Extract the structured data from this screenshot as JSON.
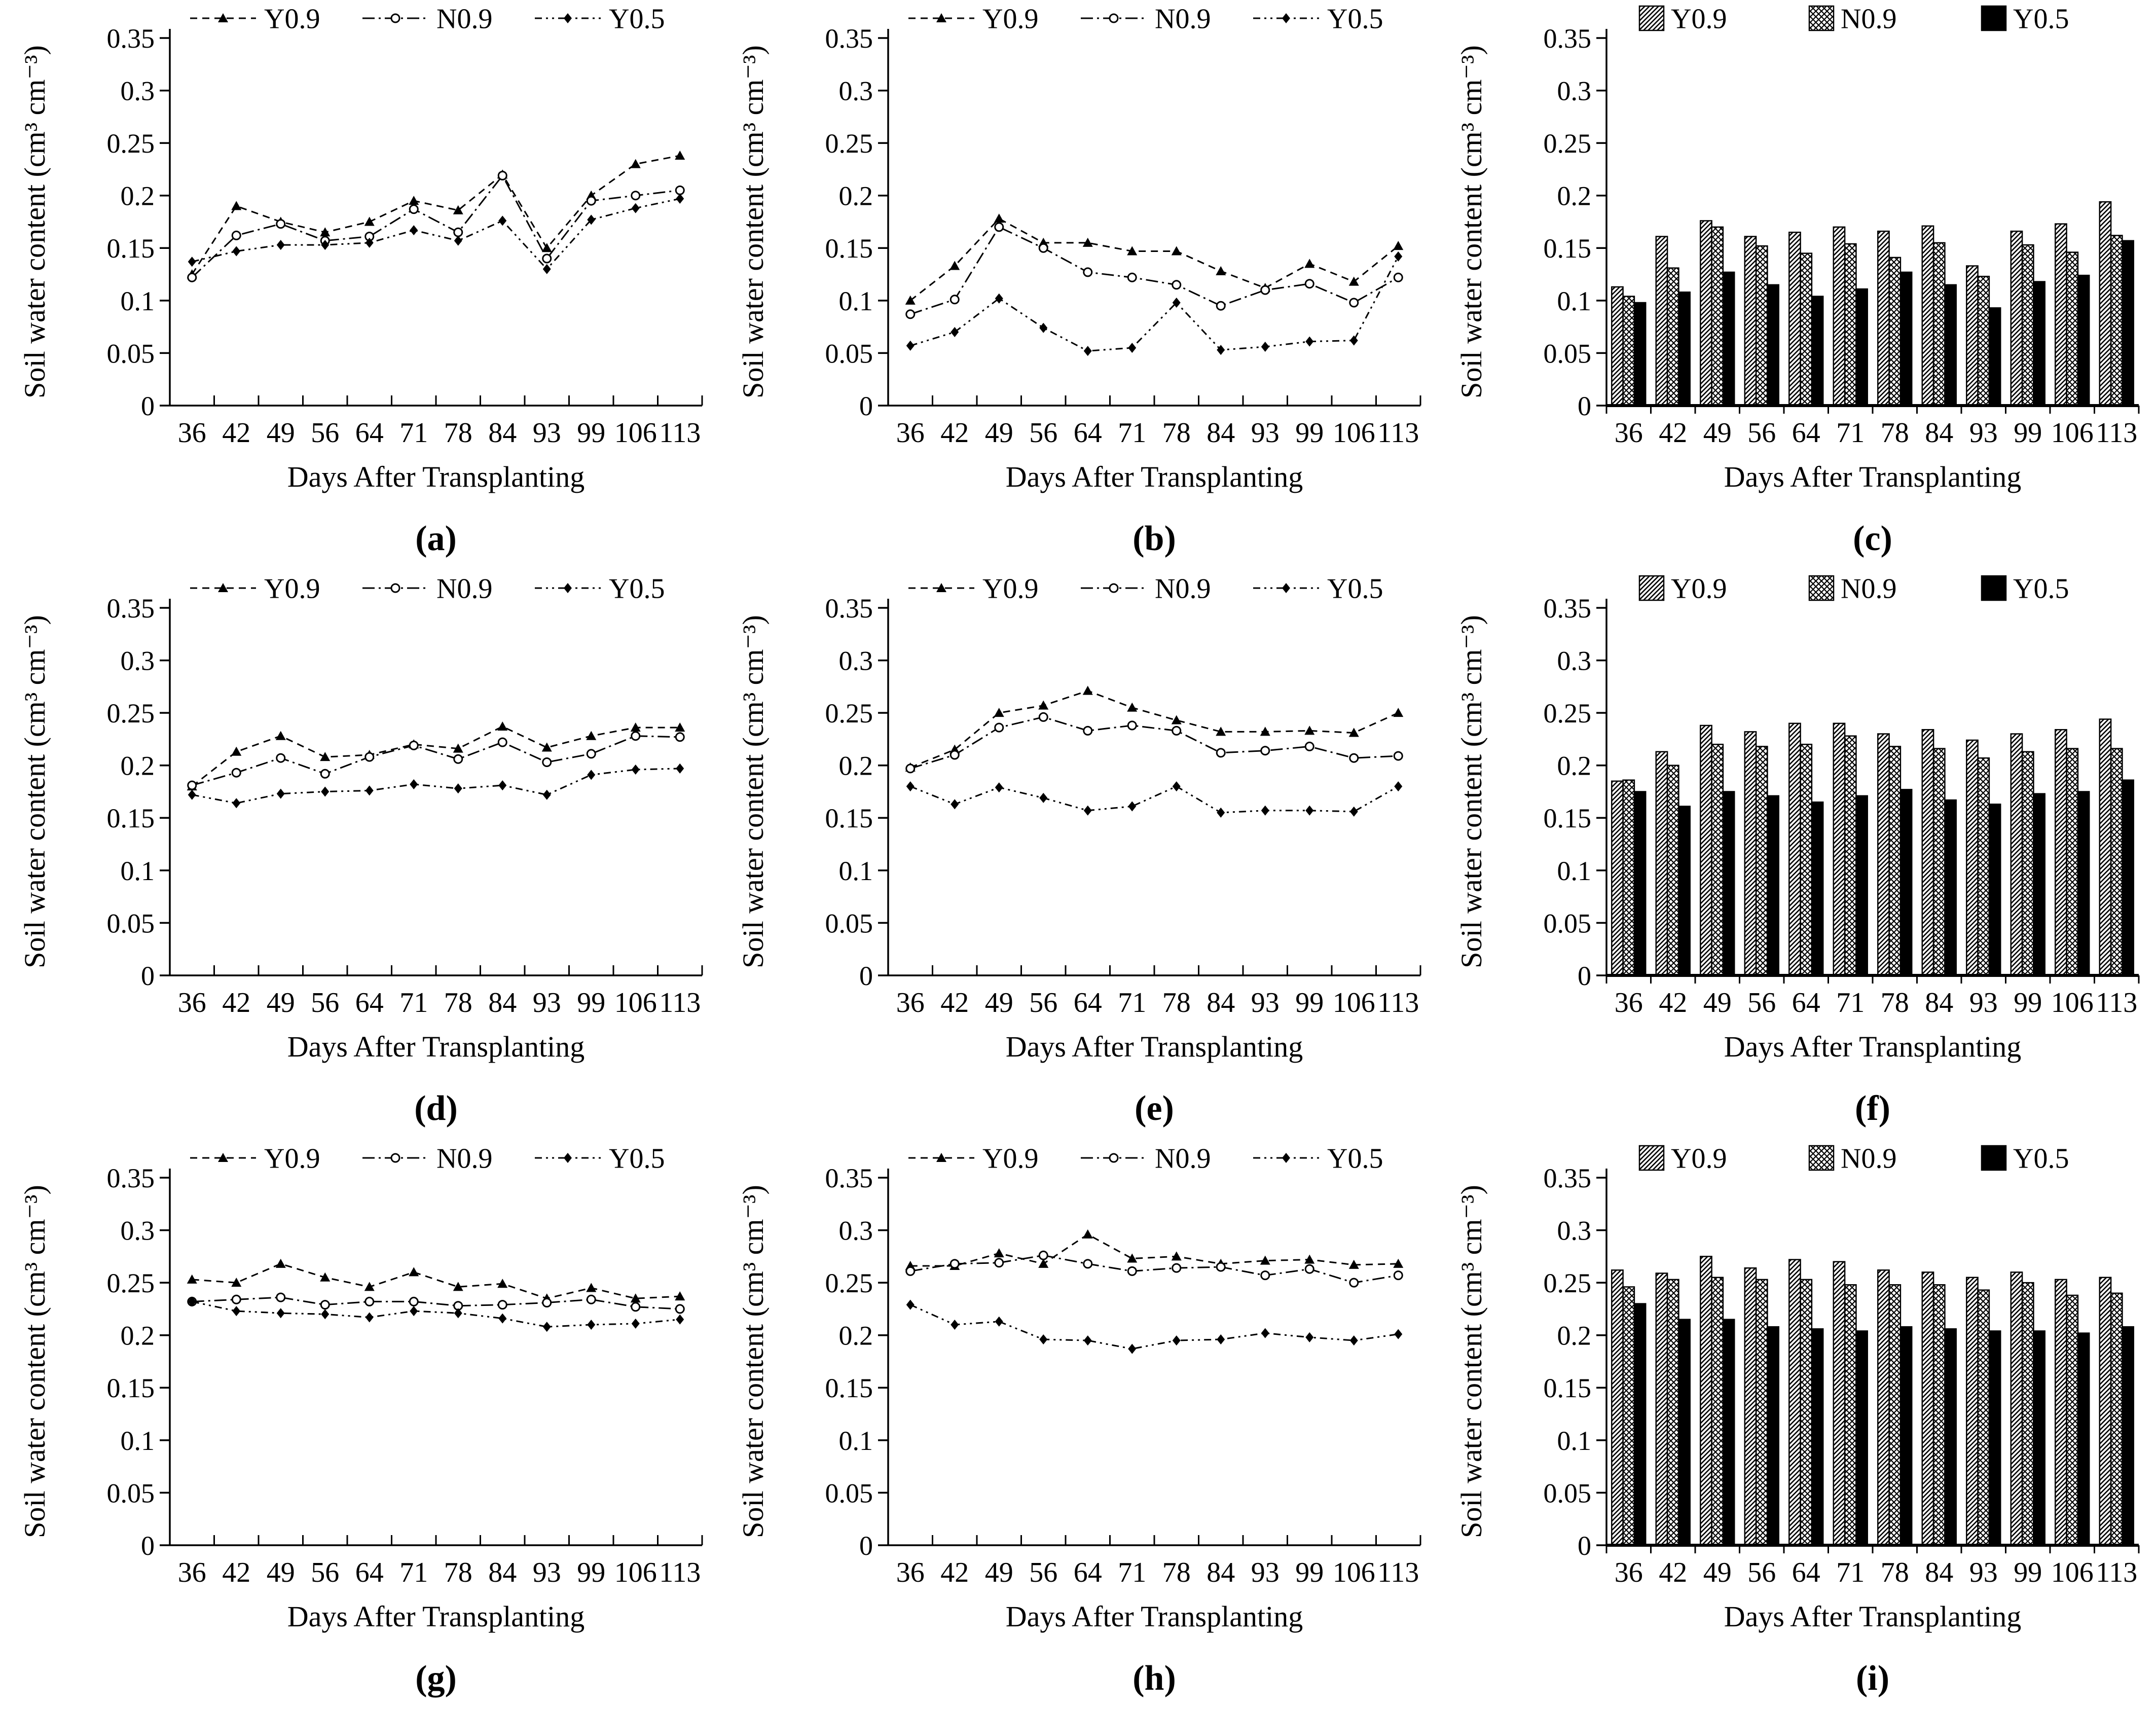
{
  "page": {
    "background": "#ffffff",
    "ink": "#000000"
  },
  "legend": {
    "position": "top-center",
    "items": [
      {
        "name": "Y0.9",
        "line_marker": "triangle-filled",
        "line_style": "dashed",
        "bar_fill": "diagonal-hatch"
      },
      {
        "name": "N0.9",
        "line_marker": "circle-open",
        "line_style": "dash-dot",
        "bar_fill": "diamond-crosshatch"
      },
      {
        "name": "Y0.5",
        "line_marker": "diamond-filled",
        "line_style": "dash-dot-dot",
        "bar_fill": "solid-black"
      }
    ]
  },
  "chart_data": [
    {
      "id": "a",
      "label": "(a)",
      "type": "line",
      "xlabel": "Days After Transplanting",
      "ylabel": "Soil water content (cm³ cm⁻³)",
      "ylim": [
        0,
        0.35
      ],
      "yticks": [
        0,
        0.05,
        0.1,
        0.15,
        0.2,
        0.25,
        0.3,
        0.35
      ],
      "grid": false,
      "categories": [
        36,
        42,
        49,
        56,
        64,
        71,
        78,
        84,
        93,
        99,
        106,
        113
      ],
      "series": [
        {
          "name": "Y0.9",
          "values": [
            0.125,
            0.19,
            0.175,
            0.165,
            0.175,
            0.195,
            0.186,
            0.22,
            0.15,
            0.2,
            0.23,
            0.238
          ]
        },
        {
          "name": "N0.9",
          "values": [
            0.122,
            0.162,
            0.173,
            0.157,
            0.161,
            0.187,
            0.165,
            0.219,
            0.14,
            0.195,
            0.2,
            0.205
          ]
        },
        {
          "name": "Y0.5",
          "values": [
            0.137,
            0.147,
            0.153,
            0.153,
            0.155,
            0.167,
            0.157,
            0.176,
            0.13,
            0.177,
            0.188,
            0.197
          ]
        }
      ]
    },
    {
      "id": "b",
      "label": "(b)",
      "type": "line",
      "xlabel": "Days After Transplanting",
      "ylabel": "Soil water content (cm³ cm⁻³)",
      "ylim": [
        0,
        0.35
      ],
      "yticks": [
        0,
        0.05,
        0.1,
        0.15,
        0.2,
        0.25,
        0.3,
        0.35
      ],
      "grid": false,
      "categories": [
        36,
        42,
        49,
        56,
        64,
        71,
        78,
        84,
        93,
        99,
        106,
        113
      ],
      "series": [
        {
          "name": "Y0.9",
          "values": [
            0.1,
            0.133,
            0.178,
            0.155,
            0.155,
            0.147,
            0.147,
            0.128,
            0.112,
            0.135,
            0.118,
            0.152
          ]
        },
        {
          "name": "N0.9",
          "values": [
            0.087,
            0.101,
            0.17,
            0.15,
            0.127,
            0.122,
            0.115,
            0.095,
            0.11,
            0.116,
            0.098,
            0.122
          ]
        },
        {
          "name": "Y0.5",
          "values": [
            0.057,
            0.07,
            0.102,
            0.074,
            0.052,
            0.055,
            0.098,
            0.053,
            0.056,
            0.061,
            0.062,
            0.142
          ]
        }
      ]
    },
    {
      "id": "c",
      "label": "(c)",
      "type": "bar",
      "xlabel": "Days After Transplanting",
      "ylabel": "Soil water content (cm³ cm⁻³)",
      "ylim": [
        0,
        0.35
      ],
      "yticks": [
        0,
        0.05,
        0.1,
        0.15,
        0.2,
        0.25,
        0.3,
        0.35
      ],
      "grid": false,
      "categories": [
        36,
        42,
        49,
        56,
        64,
        71,
        78,
        84,
        93,
        99,
        106,
        113
      ],
      "series": [
        {
          "name": "Y0.9",
          "values": [
            0.113,
            0.161,
            0.176,
            0.161,
            0.165,
            0.17,
            0.166,
            0.171,
            0.133,
            0.166,
            0.173,
            0.194
          ]
        },
        {
          "name": "N0.9",
          "values": [
            0.104,
            0.131,
            0.17,
            0.152,
            0.145,
            0.154,
            0.141,
            0.155,
            0.123,
            0.153,
            0.146,
            0.162
          ]
        },
        {
          "name": "Y0.5",
          "values": [
            0.098,
            0.108,
            0.127,
            0.115,
            0.104,
            0.111,
            0.127,
            0.115,
            0.093,
            0.118,
            0.124,
            0.157
          ]
        }
      ]
    },
    {
      "id": "d",
      "label": "(d)",
      "type": "line",
      "xlabel": "Days After Transplanting",
      "ylabel": "Soil water content (cm³ cm⁻³)",
      "ylim": [
        0,
        0.35
      ],
      "yticks": [
        0,
        0.05,
        0.1,
        0.15,
        0.2,
        0.25,
        0.3,
        0.35
      ],
      "grid": false,
      "categories": [
        36,
        42,
        49,
        56,
        64,
        71,
        78,
        84,
        93,
        99,
        106,
        113
      ],
      "series": [
        {
          "name": "Y0.9",
          "values": [
            0.18,
            0.213,
            0.228,
            0.208,
            0.21,
            0.22,
            0.216,
            0.237,
            0.217,
            0.228,
            0.236,
            0.236
          ]
        },
        {
          "name": "N0.9",
          "values": [
            0.181,
            0.193,
            0.207,
            0.192,
            0.208,
            0.219,
            0.206,
            0.222,
            0.203,
            0.211,
            0.228,
            0.227
          ]
        },
        {
          "name": "Y0.5",
          "values": [
            0.172,
            0.164,
            0.173,
            0.175,
            0.176,
            0.182,
            0.178,
            0.181,
            0.172,
            0.191,
            0.196,
            0.197
          ]
        }
      ]
    },
    {
      "id": "e",
      "label": "(e)",
      "type": "line",
      "xlabel": "Days After Transplanting",
      "ylabel": "Soil water content (cm³ cm⁻³)",
      "ylim": [
        0,
        0.35
      ],
      "yticks": [
        0,
        0.05,
        0.1,
        0.15,
        0.2,
        0.25,
        0.3,
        0.35
      ],
      "grid": false,
      "categories": [
        36,
        42,
        49,
        56,
        64,
        71,
        78,
        84,
        93,
        99,
        106,
        113
      ],
      "series": [
        {
          "name": "Y0.9",
          "values": [
            0.198,
            0.215,
            0.25,
            0.257,
            0.271,
            0.255,
            0.243,
            0.232,
            0.232,
            0.233,
            0.231,
            0.25
          ]
        },
        {
          "name": "N0.9",
          "values": [
            0.197,
            0.21,
            0.236,
            0.246,
            0.233,
            0.238,
            0.233,
            0.212,
            0.214,
            0.218,
            0.207,
            0.209
          ]
        },
        {
          "name": "Y0.5",
          "values": [
            0.18,
            0.163,
            0.179,
            0.169,
            0.157,
            0.161,
            0.18,
            0.155,
            0.157,
            0.157,
            0.156,
            0.18
          ]
        }
      ]
    },
    {
      "id": "f",
      "label": "(f)",
      "type": "bar",
      "xlabel": "Days After Transplanting",
      "ylabel": "Soil water content (cm³ cm⁻³)",
      "ylim": [
        0,
        0.35
      ],
      "yticks": [
        0,
        0.05,
        0.1,
        0.15,
        0.2,
        0.25,
        0.3,
        0.35
      ],
      "grid": false,
      "categories": [
        36,
        42,
        49,
        56,
        64,
        71,
        78,
        84,
        93,
        99,
        106,
        113
      ],
      "series": [
        {
          "name": "Y0.9",
          "values": [
            0.185,
            0.213,
            0.238,
            0.232,
            0.24,
            0.24,
            0.23,
            0.234,
            0.224,
            0.23,
            0.234,
            0.244
          ]
        },
        {
          "name": "N0.9",
          "values": [
            0.186,
            0.2,
            0.22,
            0.218,
            0.22,
            0.228,
            0.218,
            0.216,
            0.207,
            0.213,
            0.216,
            0.216
          ]
        },
        {
          "name": "Y0.5",
          "values": [
            0.175,
            0.161,
            0.175,
            0.171,
            0.165,
            0.171,
            0.177,
            0.167,
            0.163,
            0.173,
            0.175,
            0.186
          ]
        }
      ]
    },
    {
      "id": "g",
      "label": "(g)",
      "type": "line",
      "xlabel": "Days After Transplanting",
      "ylabel": "Soil water content (cm³ cm⁻³)",
      "ylim": [
        0,
        0.35
      ],
      "yticks": [
        0,
        0.05,
        0.1,
        0.15,
        0.2,
        0.25,
        0.3,
        0.35
      ],
      "grid": false,
      "categories": [
        36,
        42,
        49,
        56,
        64,
        71,
        78,
        84,
        93,
        99,
        106,
        113
      ],
      "series": [
        {
          "name": "Y0.9",
          "values": [
            0.253,
            0.25,
            0.268,
            0.255,
            0.246,
            0.26,
            0.246,
            0.249,
            0.235,
            0.245,
            0.235,
            0.237
          ]
        },
        {
          "name": "N0.9",
          "values": [
            0.232,
            0.234,
            0.236,
            0.229,
            0.232,
            0.232,
            0.228,
            0.229,
            0.231,
            0.234,
            0.227,
            0.225
          ]
        },
        {
          "name": "Y0.5",
          "values": [
            0.232,
            0.223,
            0.221,
            0.22,
            0.217,
            0.223,
            0.221,
            0.216,
            0.208,
            0.21,
            0.211,
            0.215
          ]
        }
      ]
    },
    {
      "id": "h",
      "label": "(h)",
      "type": "line",
      "xlabel": "Days After Transplanting",
      "ylabel": "Soil water content (cm³ cm⁻³)",
      "ylim": [
        0,
        0.35
      ],
      "yticks": [
        0,
        0.05,
        0.1,
        0.15,
        0.2,
        0.25,
        0.3,
        0.35
      ],
      "grid": false,
      "categories": [
        36,
        42,
        49,
        56,
        64,
        71,
        78,
        84,
        93,
        99,
        106,
        113
      ],
      "series": [
        {
          "name": "Y0.9",
          "values": [
            0.266,
            0.266,
            0.278,
            0.268,
            0.296,
            0.273,
            0.275,
            0.268,
            0.271,
            0.272,
            0.267,
            0.268
          ]
        },
        {
          "name": "N0.9",
          "values": [
            0.261,
            0.268,
            0.269,
            0.276,
            0.268,
            0.261,
            0.264,
            0.265,
            0.257,
            0.263,
            0.25,
            0.257
          ]
        },
        {
          "name": "Y0.5",
          "values": [
            0.229,
            0.21,
            0.213,
            0.196,
            0.195,
            0.187,
            0.195,
            0.196,
            0.202,
            0.198,
            0.195,
            0.201
          ]
        }
      ]
    },
    {
      "id": "i",
      "label": "(i)",
      "type": "bar",
      "xlabel": "Days After Transplanting",
      "ylabel": "Soil water content (cm³ cm⁻³)",
      "ylim": [
        0,
        0.35
      ],
      "yticks": [
        0,
        0.05,
        0.1,
        0.15,
        0.2,
        0.25,
        0.3,
        0.35
      ],
      "grid": false,
      "categories": [
        36,
        42,
        49,
        56,
        64,
        71,
        78,
        84,
        93,
        99,
        106,
        113
      ],
      "series": [
        {
          "name": "Y0.9",
          "values": [
            0.262,
            0.259,
            0.275,
            0.264,
            0.272,
            0.27,
            0.262,
            0.26,
            0.255,
            0.26,
            0.253,
            0.255
          ]
        },
        {
          "name": "N0.9",
          "values": [
            0.246,
            0.253,
            0.255,
            0.253,
            0.253,
            0.248,
            0.248,
            0.248,
            0.243,
            0.25,
            0.238,
            0.24
          ]
        },
        {
          "name": "Y0.5",
          "values": [
            0.23,
            0.215,
            0.215,
            0.208,
            0.206,
            0.204,
            0.208,
            0.206,
            0.204,
            0.204,
            0.202,
            0.208
          ]
        }
      ]
    }
  ]
}
